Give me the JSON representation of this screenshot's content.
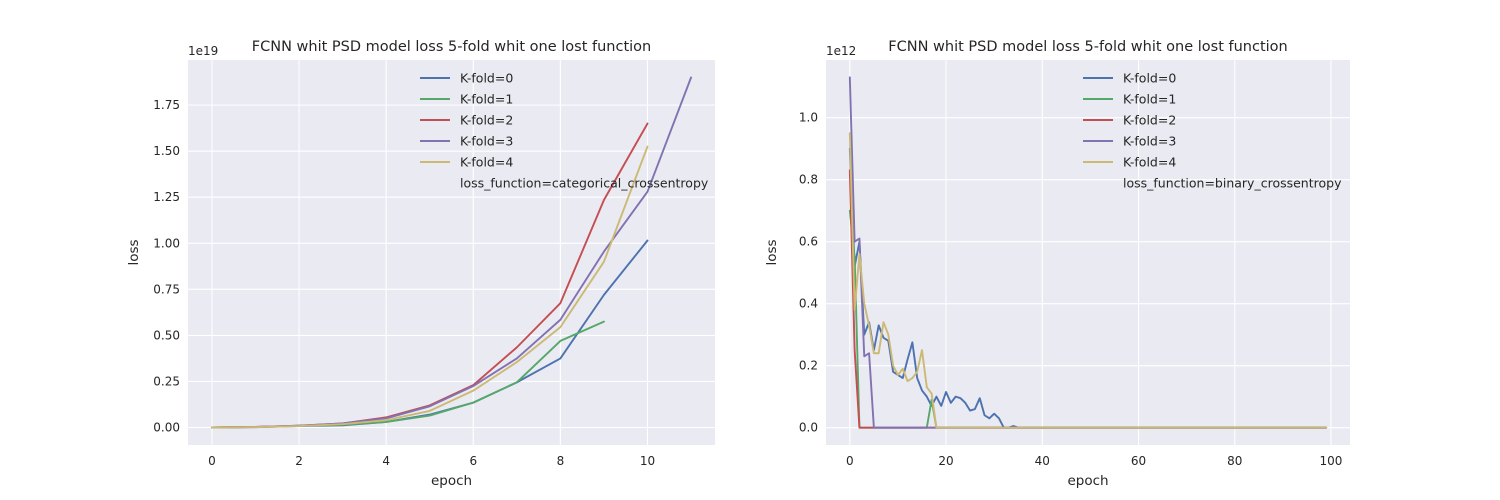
{
  "chart_data": [
    {
      "type": "line",
      "title": "FCNN whit PSD model loss 5-fold whit one lost function",
      "xlabel": "epoch",
      "ylabel": "loss",
      "offset_label": "1e19",
      "xlim": [
        -0.55,
        11.55
      ],
      "ylim": [
        -0.095,
        1.995
      ],
      "xticks": [
        0,
        2,
        4,
        6,
        8,
        10
      ],
      "xtick_labels": [
        "0",
        "2",
        "4",
        "6",
        "8",
        "10"
      ],
      "yticks": [
        0,
        0.25,
        0.5,
        0.75,
        1.0,
        1.25,
        1.5,
        1.75
      ],
      "ytick_labels": [
        "0.00",
        "0.25",
        "0.50",
        "0.75",
        "1.00",
        "1.25",
        "1.50",
        "1.75"
      ],
      "grid": true,
      "legend_position": "top-center",
      "legend_note": "loss_function=categorical_crossentropy",
      "series": [
        {
          "name": "K-fold=0",
          "color": "#4c72b0",
          "x": [
            0,
            1,
            2,
            3,
            4,
            5,
            6,
            7,
            8,
            9,
            10
          ],
          "y": [
            0,
            0.002,
            0.008,
            0.012,
            0.03,
            0.07,
            0.135,
            0.245,
            0.375,
            0.72,
            1.015
          ]
        },
        {
          "name": "K-fold=1",
          "color": "#55a868",
          "x": [
            0,
            1,
            2,
            3,
            4,
            5,
            6,
            7,
            8,
            9
          ],
          "y": [
            0,
            0.003,
            0.009,
            0.015,
            0.03,
            0.065,
            0.135,
            0.245,
            0.47,
            0.575
          ]
        },
        {
          "name": "K-fold=2",
          "color": "#c44e52",
          "x": [
            0,
            1,
            2,
            3,
            4,
            5,
            6,
            7,
            8,
            9,
            10
          ],
          "y": [
            0,
            0.003,
            0.01,
            0.022,
            0.055,
            0.12,
            0.23,
            0.435,
            0.675,
            1.235,
            1.65
          ]
        },
        {
          "name": "K-fold=3",
          "color": "#8172b2",
          "x": [
            0,
            1,
            2,
            3,
            4,
            5,
            6,
            7,
            8,
            9,
            10,
            11
          ],
          "y": [
            0,
            0.003,
            0.01,
            0.022,
            0.05,
            0.115,
            0.225,
            0.375,
            0.585,
            0.955,
            1.28,
            1.9
          ]
        },
        {
          "name": "K-fold=4",
          "color": "#ccb974",
          "x": [
            0,
            1,
            2,
            3,
            4,
            5,
            6,
            7,
            8,
            9,
            10
          ],
          "y": [
            0,
            0.002,
            0.008,
            0.018,
            0.04,
            0.09,
            0.2,
            0.355,
            0.545,
            0.9,
            1.525
          ]
        }
      ]
    },
    {
      "type": "line",
      "title": "FCNN whit PSD model loss 5-fold whit one lost function",
      "xlabel": "epoch",
      "ylabel": "loss",
      "offset_label": "1e12",
      "xlim": [
        -4.95,
        103.95
      ],
      "ylim": [
        -0.056,
        1.186
      ],
      "xticks": [
        0,
        20,
        40,
        60,
        80,
        100
      ],
      "xtick_labels": [
        "0",
        "20",
        "40",
        "60",
        "80",
        "100"
      ],
      "yticks": [
        0,
        0.2,
        0.4,
        0.6,
        0.8,
        1.0
      ],
      "ytick_labels": [
        "0.0",
        "0.2",
        "0.4",
        "0.6",
        "0.8",
        "1.0"
      ],
      "grid": true,
      "legend_position": "top-center",
      "legend_note": "loss_function=binary_crossentropy",
      "series": [
        {
          "name": "K-fold=0",
          "color": "#4c72b0",
          "x": [
            0,
            1,
            2,
            3,
            4,
            5,
            6,
            7,
            8,
            9,
            10,
            11,
            12,
            13,
            14,
            15,
            16,
            17,
            18,
            19,
            20,
            21,
            22,
            23,
            24,
            25,
            26,
            27,
            28,
            29,
            30,
            31,
            32,
            33,
            34,
            35,
            99
          ],
          "y": [
            0.9,
            0.52,
            0.6,
            0.3,
            0.34,
            0.25,
            0.33,
            0.29,
            0.28,
            0.18,
            0.17,
            0.16,
            0.22,
            0.275,
            0.16,
            0.12,
            0.1,
            0.07,
            0.1,
            0.07,
            0.115,
            0.08,
            0.1,
            0.095,
            0.08,
            0.055,
            0.06,
            0.095,
            0.04,
            0.03,
            0.045,
            0.03,
            0.0,
            0.0,
            0.005,
            0.0,
            0.0
          ]
        },
        {
          "name": "K-fold=1",
          "color": "#55a868",
          "x": [
            0,
            1,
            2,
            3,
            4,
            5,
            6,
            7,
            8,
            9,
            10,
            11,
            12,
            13,
            14,
            15,
            16,
            17,
            18,
            19,
            20,
            99
          ],
          "y": [
            0.7,
            0.55,
            0.0,
            0.0,
            0.0,
            0.0,
            0.0,
            0.0,
            0.0,
            0.0,
            0.0,
            0.0,
            0.0,
            0.0,
            0.0,
            0.0,
            0.0,
            0.09,
            0.0,
            0.0,
            0.0,
            0.0
          ]
        },
        {
          "name": "K-fold=2",
          "color": "#c44e52",
          "x": [
            0,
            1,
            2,
            3,
            99
          ],
          "y": [
            0.83,
            0.25,
            0.0,
            0.0,
            0.0
          ]
        },
        {
          "name": "K-fold=3",
          "color": "#8172b2",
          "x": [
            0,
            1,
            2,
            3,
            4,
            5,
            6,
            99
          ],
          "y": [
            1.13,
            0.6,
            0.61,
            0.23,
            0.24,
            0.0,
            0.0,
            0.0
          ]
        },
        {
          "name": "K-fold=4",
          "color": "#ccb974",
          "x": [
            0,
            1,
            2,
            3,
            4,
            5,
            6,
            7,
            8,
            9,
            10,
            11,
            12,
            13,
            14,
            15,
            16,
            17,
            18,
            19,
            20,
            99
          ],
          "y": [
            0.95,
            0.38,
            0.56,
            0.4,
            0.33,
            0.24,
            0.24,
            0.34,
            0.3,
            0.2,
            0.17,
            0.19,
            0.15,
            0.16,
            0.18,
            0.25,
            0.13,
            0.11,
            0.0,
            0.0,
            0.0,
            0.0
          ]
        }
      ]
    }
  ]
}
